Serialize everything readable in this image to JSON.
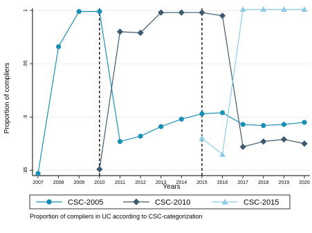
{
  "chart_data": {
    "type": "line",
    "x": [
      2007,
      2008,
      2009,
      2010,
      2011,
      2012,
      2013,
      2014,
      2015,
      2016,
      2017,
      2018,
      2019,
      2020
    ],
    "x_ticks": [
      "2007",
      "2008",
      "2009",
      "2010",
      "2011",
      "2012",
      "2013",
      "2014",
      "2015",
      "2016",
      "2017",
      "2018",
      "2019",
      "2020"
    ],
    "xlabel": "Years",
    "ylabel": "Proportion of compliers",
    "ylim": [
      0.845,
      1.002
    ],
    "y_ticks": [
      {
        "value": 0.85,
        "label": ".85"
      },
      {
        "value": 0.9,
        "label": ".9"
      },
      {
        "value": 0.95,
        "label": ".95"
      },
      {
        "value": 1.0,
        "label": "1"
      }
    ],
    "vlines": [
      2010,
      2015
    ],
    "legend_position": "bottom",
    "note": "Proportion of compliers in UC according to CSC-categorization",
    "series": [
      {
        "name": "CSC-2005",
        "color": "#1a8fb5",
        "marker": "circle",
        "x": [
          2007,
          2008,
          2009,
          2010,
          2011,
          2012,
          2013,
          2014,
          2015,
          2016,
          2017,
          2018,
          2019,
          2020
        ],
        "values": [
          0.847,
          0.966,
          0.999,
          0.999,
          0.877,
          0.882,
          0.891,
          0.898,
          0.903,
          0.904,
          0.893,
          0.892,
          0.893,
          0.895
        ]
      },
      {
        "name": "CSC-2010",
        "color": "#3e5a6e",
        "marker": "diamond",
        "x": [
          2010,
          2011,
          2012,
          2013,
          2014,
          2015,
          2016,
          2017,
          2018,
          2019,
          2020
        ],
        "values": [
          0.851,
          0.98,
          0.979,
          0.998,
          0.998,
          0.998,
          0.995,
          0.872,
          0.877,
          0.879,
          0.875
        ]
      },
      {
        "name": "CSC-2015",
        "color": "#8ccbe8",
        "marker": "triangle",
        "x": [
          2015,
          2016,
          2017,
          2018,
          2019,
          2020
        ],
        "values": [
          0.88,
          0.865,
          1.001,
          1.001,
          1.001,
          1.001
        ]
      }
    ]
  }
}
